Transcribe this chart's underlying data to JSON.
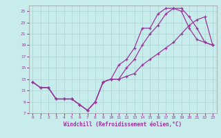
{
  "xlabel": "Windchill (Refroidissement éolien,°C)",
  "bg_color": "#c8ecec",
  "grid_color": "#b0d8d8",
  "line_color": "#993399",
  "xlim": [
    -0.5,
    23.5
  ],
  "ylim": [
    7,
    26
  ],
  "xticks": [
    0,
    1,
    2,
    3,
    4,
    5,
    6,
    7,
    8,
    9,
    10,
    11,
    12,
    13,
    14,
    15,
    16,
    17,
    18,
    19,
    20,
    21,
    22,
    23
  ],
  "yticks": [
    7,
    9,
    11,
    13,
    15,
    17,
    19,
    21,
    23,
    25
  ],
  "line1_x": [
    0,
    1,
    2,
    3,
    4,
    5,
    6,
    7,
    8,
    9,
    10,
    11,
    12,
    13,
    14,
    15,
    16,
    17,
    18,
    19,
    20,
    21,
    22,
    23
  ],
  "line1_y": [
    12.5,
    11.5,
    11.5,
    9.5,
    9.5,
    9.5,
    8.5,
    7.5,
    9.0,
    12.5,
    13.0,
    15.5,
    16.5,
    18.5,
    22.0,
    22.0,
    24.5,
    25.5,
    25.5,
    25.0,
    22.0,
    20.0,
    19.5,
    19.0
  ],
  "line2_x": [
    0,
    1,
    2,
    3,
    4,
    5,
    6,
    7,
    8,
    9,
    10,
    11,
    12,
    13,
    14,
    15,
    16,
    17,
    18,
    19,
    20,
    21,
    22,
    23
  ],
  "line2_y": [
    12.5,
    11.5,
    11.5,
    9.5,
    9.5,
    9.5,
    8.5,
    7.5,
    9.0,
    12.5,
    13.0,
    13.0,
    15.0,
    16.5,
    19.0,
    21.0,
    22.5,
    24.5,
    25.5,
    25.5,
    24.0,
    22.0,
    19.5,
    19.0
  ],
  "line3_x": [
    0,
    1,
    2,
    3,
    4,
    5,
    6,
    7,
    8,
    9,
    10,
    11,
    12,
    13,
    14,
    15,
    16,
    17,
    18,
    19,
    20,
    21,
    22,
    23
  ],
  "line3_y": [
    12.5,
    11.5,
    11.5,
    9.5,
    9.5,
    9.5,
    8.5,
    7.5,
    9.0,
    12.5,
    13.0,
    13.0,
    13.5,
    14.0,
    15.5,
    16.5,
    17.5,
    18.5,
    19.5,
    21.0,
    22.5,
    23.5,
    24.0,
    19.0
  ]
}
